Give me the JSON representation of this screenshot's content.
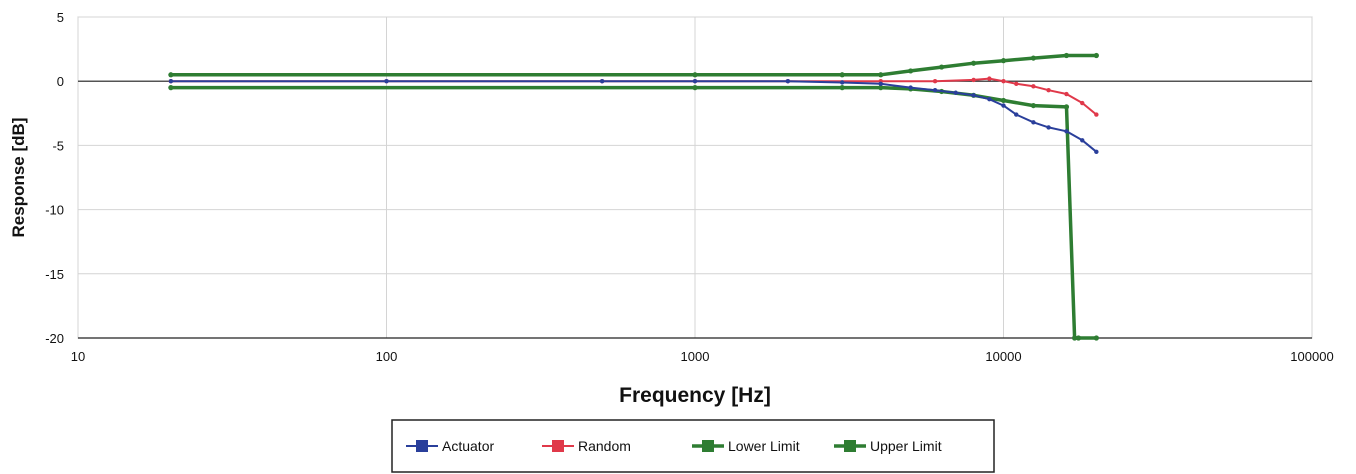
{
  "chart_data": {
    "type": "line",
    "xlabel": "Frequency [Hz]",
    "ylabel": "Response [dB]",
    "xscale": "log",
    "xlim": [
      10,
      100000
    ],
    "ylim": [
      -20,
      5
    ],
    "x_ticks": [
      10,
      100,
      1000,
      10000,
      100000
    ],
    "x_tick_labels": [
      "10",
      "100",
      "1000",
      "10000",
      "100000"
    ],
    "y_ticks": [
      5,
      0,
      -5,
      -10,
      -15,
      -20
    ],
    "y_tick_labels": [
      "5",
      "0",
      "-5",
      "-10",
      "-15",
      "-20"
    ],
    "grid": true,
    "legend_position": "bottom",
    "series": [
      {
        "name": "Actuator",
        "color": "#2a3f9b",
        "x": [
          20,
          100,
          500,
          1000,
          2000,
          3000,
          4000,
          5000,
          6000,
          7000,
          8000,
          9000,
          10000,
          11000,
          12500,
          14000,
          16000,
          18000,
          20000
        ],
        "y": [
          0,
          0,
          0,
          0,
          0,
          -0.1,
          -0.2,
          -0.5,
          -0.7,
          -0.9,
          -1.1,
          -1.4,
          -1.9,
          -2.6,
          -3.2,
          -3.6,
          -3.9,
          -4.6,
          -5.5
        ]
      },
      {
        "name": "Random",
        "color": "#e0394a",
        "x": [
          20,
          100,
          500,
          1000,
          2000,
          4000,
          6000,
          8000,
          9000,
          10000,
          11000,
          12500,
          14000,
          16000,
          18000,
          20000
        ],
        "y": [
          0,
          0,
          0,
          0,
          0,
          0,
          0,
          0.1,
          0.2,
          0,
          -0.2,
          -0.4,
          -0.7,
          -1.0,
          -1.7,
          -2.6
        ]
      },
      {
        "name": "Lower Limit",
        "color": "#2e7d32",
        "x": [
          20,
          1000,
          3000,
          4000,
          5000,
          6300,
          8000,
          10000,
          12500,
          16000,
          17000,
          17500,
          20000
        ],
        "y": [
          -0.5,
          -0.5,
          -0.5,
          -0.5,
          -0.6,
          -0.8,
          -1.1,
          -1.5,
          -1.9,
          -2.0,
          -20,
          -20,
          -20
        ]
      },
      {
        "name": "Upper Limit",
        "color": "#2e7d32",
        "x": [
          20,
          1000,
          3000,
          4000,
          5000,
          6300,
          8000,
          10000,
          12500,
          16000,
          20000
        ],
        "y": [
          0.5,
          0.5,
          0.5,
          0.5,
          0.8,
          1.1,
          1.4,
          1.6,
          1.8,
          2.0,
          2.0
        ]
      }
    ]
  }
}
